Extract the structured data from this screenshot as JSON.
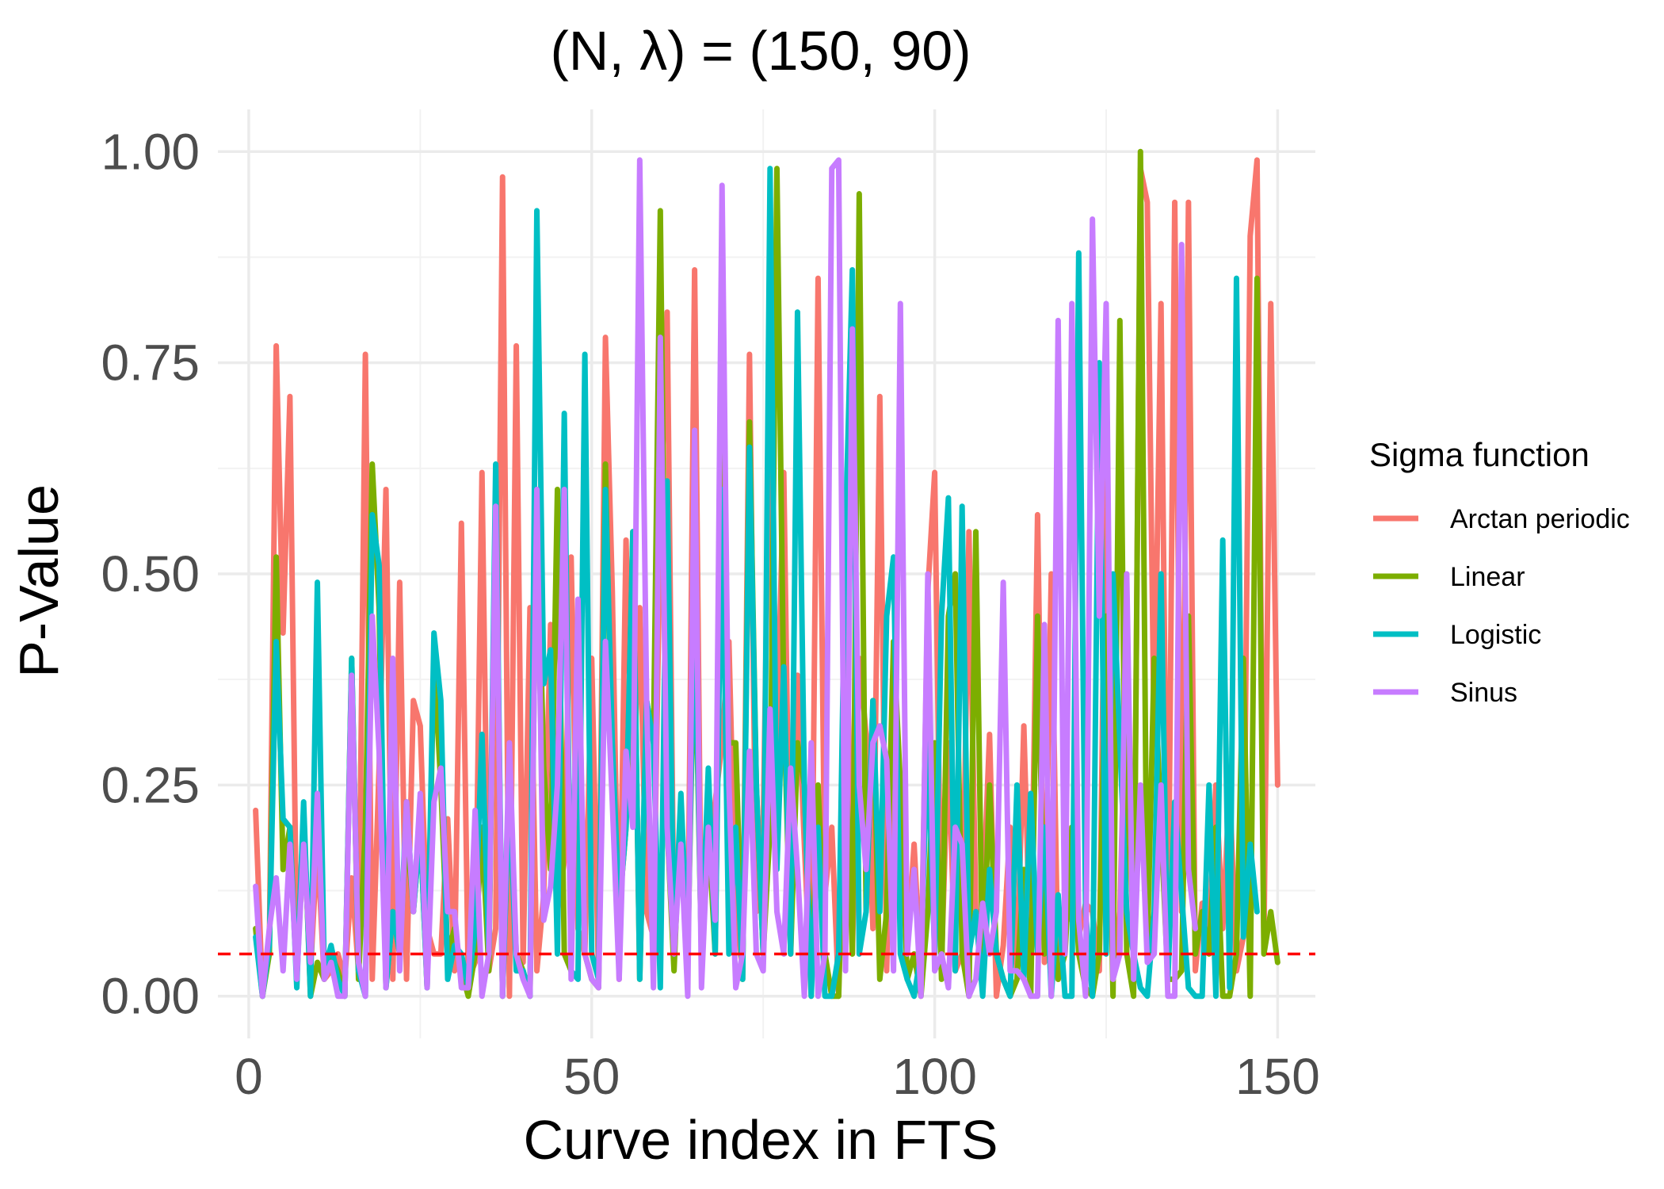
{
  "chart_data": {
    "type": "line",
    "title": "(N, λ) = (150, 90)",
    "xlabel": "Curve index in FTS",
    "ylabel": "P-Value",
    "xlim": [
      -4.5,
      155.5
    ],
    "ylim": [
      -0.05,
      1.05
    ],
    "x_ticks": [
      0,
      50,
      100,
      150
    ],
    "x_tick_labels": [
      "0",
      "50",
      "100",
      "150"
    ],
    "y_ticks": [
      0,
      0.25,
      0.5,
      0.75,
      1.0
    ],
    "y_tick_labels": [
      "0.00",
      "0.25",
      "0.50",
      "0.75",
      "1.00"
    ],
    "grid": true,
    "legend_position": "right",
    "legend_title": "Sigma function",
    "reference_line": {
      "y": 0.05,
      "color": "#ff0000",
      "style": "dashed"
    },
    "series": [
      {
        "name": "Arctan periodic",
        "color": "#f8766d",
        "values": [
          0.22,
          0.0,
          0.06,
          0.77,
          0.43,
          0.71,
          0.04,
          0.19,
          0.03,
          0.18,
          0.02,
          0.03,
          0.05,
          0.02,
          0.14,
          0.03,
          0.76,
          0.02,
          0.27,
          0.6,
          0.02,
          0.49,
          0.02,
          0.35,
          0.32,
          0.08,
          0.05,
          0.05,
          0.21,
          0.03,
          0.56,
          0.02,
          0.04,
          0.62,
          0.03,
          0.08,
          0.97,
          0.0,
          0.77,
          0.04,
          0.46,
          0.03,
          0.12,
          0.44,
          0.1,
          0.16,
          0.52,
          0.08,
          0.05,
          0.4,
          0.02,
          0.78,
          0.48,
          0.02,
          0.54,
          0.23,
          0.46,
          0.1,
          0.07,
          0.56,
          0.81,
          0.07,
          0.21,
          0.05,
          0.86,
          0.04,
          0.18,
          0.23,
          0.3,
          0.42,
          0.1,
          0.03,
          0.76,
          0.1,
          0.2,
          0.72,
          0.3,
          0.62,
          0.05,
          0.38,
          0.18,
          0.0,
          0.85,
          0.12,
          0.2,
          0.0,
          0.54,
          0.05,
          0.4,
          0.31,
          0.08,
          0.71,
          0.03,
          0.4,
          0.18,
          0.05,
          0.18,
          0.02,
          0.48,
          0.62,
          0.04,
          0.3,
          0.03,
          0.05,
          0.55,
          0.1,
          0.1,
          0.31,
          0.0,
          0.06,
          0.2,
          0.03,
          0.32,
          0.03,
          0.57,
          0.04,
          0.5,
          0.02,
          0.11,
          0.09,
          0.07,
          0.11,
          0.1,
          0.03,
          0.67,
          0.02,
          0.1,
          0.42,
          0.03,
          0.98,
          0.94,
          0.3,
          0.82,
          0.03,
          0.94,
          0.1,
          0.94,
          0.03,
          0.11,
          0.07,
          0.25,
          0.08,
          0.25,
          0.03,
          0.07,
          0.9,
          0.99,
          0.06,
          0.82,
          0.25
        ]
      },
      {
        "name": "Linear",
        "color": "#7cae00",
        "values": [
          0.08,
          0.0,
          0.05,
          0.52,
          0.15,
          0.2,
          0.02,
          0.22,
          0.0,
          0.04,
          0.02,
          0.05,
          0.03,
          0.0,
          0.4,
          0.02,
          0.2,
          0.63,
          0.46,
          0.01,
          0.1,
          0.05,
          0.2,
          0.1,
          0.2,
          0.01,
          0.4,
          0.25,
          0.05,
          0.08,
          0.03,
          0.0,
          0.05,
          0.2,
          0.03,
          0.6,
          0.0,
          0.25,
          0.05,
          0.03,
          0.0,
          0.6,
          0.27,
          0.15,
          0.6,
          0.05,
          0.03,
          0.45,
          0.05,
          0.02,
          0.01,
          0.63,
          0.25,
          0.1,
          0.2,
          0.55,
          0.02,
          0.35,
          0.3,
          0.93,
          0.2,
          0.03,
          0.23,
          0.05,
          0.45,
          0.05,
          0.2,
          0.05,
          0.65,
          0.3,
          0.3,
          0.02,
          0.68,
          0.25,
          0.05,
          0.2,
          0.98,
          0.35,
          0.05,
          0.3,
          0.25,
          0.01,
          0.25,
          0.05,
          0.0,
          0.0,
          0.3,
          0.05,
          0.95,
          0.1,
          0.35,
          0.02,
          0.1,
          0.42,
          0.25,
          0.02,
          0.05,
          0.0,
          0.1,
          0.3,
          0.02,
          0.45,
          0.5,
          0.05,
          0.0,
          0.55,
          0.02,
          0.25,
          0.05,
          0.02,
          0.0,
          0.02,
          0.15,
          0.0,
          0.45,
          0.05,
          0.13,
          0.02,
          0.05,
          0.2,
          0.05,
          0.01,
          0.0,
          0.05,
          0.45,
          0.0,
          0.8,
          0.05,
          0.0,
          1.0,
          0.05,
          0.4,
          0.2,
          0.02,
          0.02,
          0.03,
          0.45,
          0.05,
          0.1,
          0.05,
          0.2,
          0.0,
          0.0,
          0.05,
          0.4,
          0.0,
          0.85,
          0.05,
          0.1,
          0.04
        ]
      },
      {
        "name": "Logistic",
        "color": "#00bfc4",
        "values": [
          0.07,
          0.0,
          0.06,
          0.42,
          0.21,
          0.2,
          0.01,
          0.23,
          0.0,
          0.49,
          0.03,
          0.06,
          0.02,
          0.0,
          0.4,
          0.03,
          0.0,
          0.57,
          0.51,
          0.01,
          0.1,
          0.05,
          0.23,
          0.1,
          0.2,
          0.01,
          0.43,
          0.35,
          0.02,
          0.06,
          0.05,
          0.01,
          0.08,
          0.31,
          0.05,
          0.63,
          0.0,
          0.25,
          0.03,
          0.03,
          0.0,
          0.93,
          0.37,
          0.41,
          0.05,
          0.69,
          0.03,
          0.02,
          0.76,
          0.05,
          0.02,
          0.6,
          0.3,
          0.1,
          0.2,
          0.55,
          0.02,
          0.35,
          0.3,
          0.01,
          0.61,
          0.05,
          0.24,
          0.05,
          0.48,
          0.05,
          0.27,
          0.05,
          0.6,
          0.05,
          0.2,
          0.02,
          0.65,
          0.25,
          0.05,
          0.98,
          0.15,
          0.39,
          0.05,
          0.81,
          0.25,
          0.0,
          0.2,
          0.0,
          0.0,
          0.05,
          0.55,
          0.86,
          0.05,
          0.1,
          0.35,
          0.1,
          0.45,
          0.52,
          0.05,
          0.02,
          0.0,
          0.05,
          0.3,
          0.05,
          0.45,
          0.59,
          0.03,
          0.58,
          0.05,
          0.1,
          0.0,
          0.15,
          0.05,
          0.02,
          0.0,
          0.25,
          0.02,
          0.24,
          0.05,
          0.2,
          0.0,
          0.12,
          0.0,
          0.0,
          0.88,
          0.1,
          0.0,
          0.75,
          0.05,
          0.5,
          0.3,
          0.1,
          0.05,
          0.01,
          0.0,
          0.1,
          0.5,
          0.02,
          0.23,
          0.12,
          0.01,
          0.0,
          0.0,
          0.25,
          0.0,
          0.54,
          0.01,
          0.85,
          0.07,
          0.18,
          0.1
        ]
      },
      {
        "name": "Sinus",
        "color": "#c77cff",
        "values": [
          0.13,
          0.0,
          0.08,
          0.14,
          0.03,
          0.18,
          0.02,
          0.18,
          0.04,
          0.24,
          0.02,
          0.04,
          0.0,
          0.0,
          0.38,
          0.04,
          0.0,
          0.45,
          0.29,
          0.01,
          0.4,
          0.03,
          0.23,
          0.1,
          0.24,
          0.01,
          0.23,
          0.27,
          0.1,
          0.1,
          0.01,
          0.01,
          0.22,
          0.0,
          0.05,
          0.58,
          0.0,
          0.3,
          0.05,
          0.02,
          0.0,
          0.6,
          0.09,
          0.13,
          0.25,
          0.6,
          0.02,
          0.47,
          0.05,
          0.02,
          0.01,
          0.42,
          0.23,
          0.02,
          0.29,
          0.2,
          0.99,
          0.35,
          0.01,
          0.78,
          0.2,
          0.05,
          0.18,
          0.0,
          0.67,
          0.01,
          0.2,
          0.09,
          0.96,
          0.25,
          0.01,
          0.05,
          0.29,
          0.05,
          0.03,
          0.34,
          0.1,
          0.05,
          0.27,
          0.15,
          0.0,
          0.3,
          0.0,
          0.05,
          0.98,
          0.99,
          0.03,
          0.79,
          0.25,
          0.15,
          0.3,
          0.32,
          0.28,
          0.03,
          0.82,
          0.05,
          0.15,
          0.0,
          0.5,
          0.03,
          0.05,
          0.01,
          0.2,
          0.18,
          0.0,
          0.02,
          0.11,
          0.05,
          0.1,
          0.49,
          0.03,
          0.03,
          0.02,
          0.0,
          0.0,
          0.44,
          0.0,
          0.8,
          0.05,
          0.82,
          0.09,
          0.0,
          0.92,
          0.45,
          0.82,
          0.02,
          0.05,
          0.5,
          0.02,
          0.25,
          0.04,
          0.05,
          0.25,
          0.0,
          0.0,
          0.89,
          0.15,
          0.08
        ]
      }
    ]
  }
}
